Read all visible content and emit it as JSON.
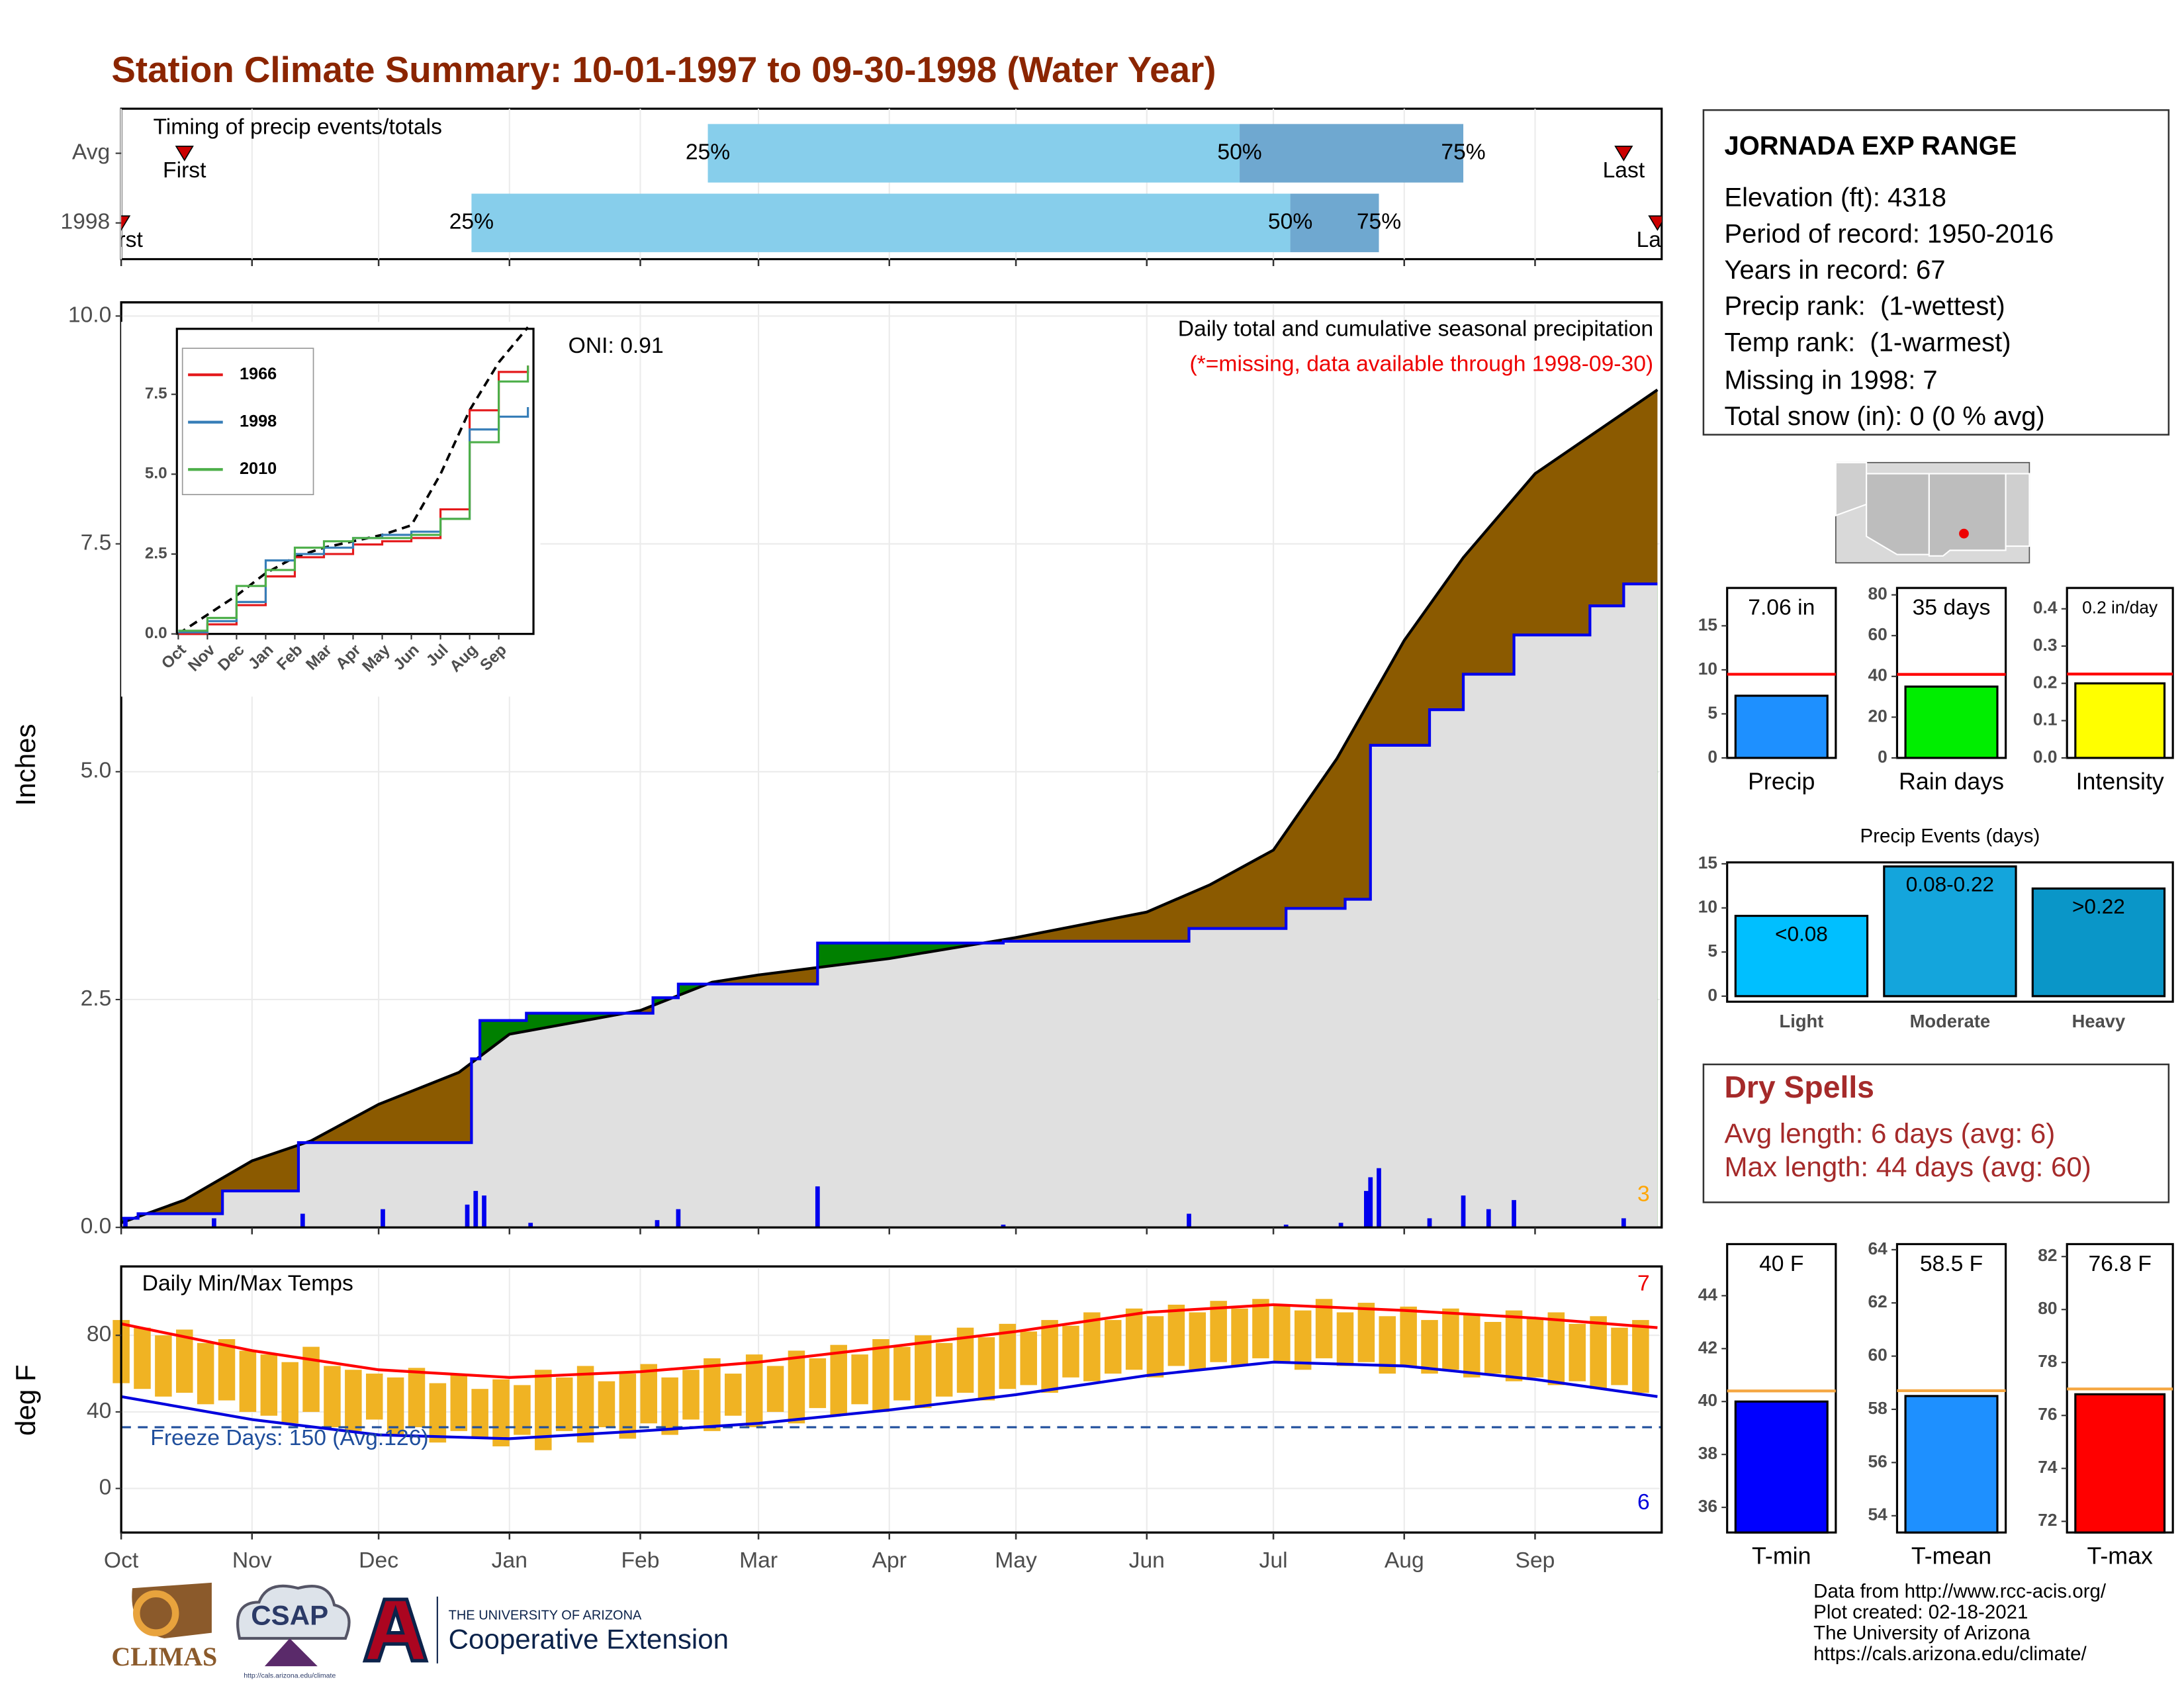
{
  "title": "Station Climate Summary: 10-01-1997 to 09-30-1998 (Water Year)",
  "station": {
    "name": "JORNADA EXP RANGE",
    "lines": [
      "Elevation (ft): 4318",
      "Period of record: 1950-2016",
      "Years in record: 67",
      "Precip rank:  (1-wettest)",
      "Temp rank:  (1-warmest)",
      "Missing in 1998: 7",
      "Total snow (in): 0 (0 % avg)"
    ]
  },
  "dry_spells": {
    "title": "Dry Spells",
    "lines": [
      "Avg length: 6 days (avg: 6)",
      "Max length: 44 days (avg: 60)"
    ]
  },
  "footer": [
    "Data from http://www.rcc-acis.org/",
    "Plot created: 02-18-2021",
    "The University of Arizona",
    "https://cals.arizona.edu/climate/"
  ],
  "logos": [
    "CLIMAS",
    "CSAP",
    "http://cals.arizona.edu/climate",
    "THE UNIVERSITY OF ARIZONA",
    "Cooperative Extension"
  ],
  "chart_data": [
    {
      "type": "timeline",
      "subtitle": "Timing of precip events/totals",
      "categories": [
        "Avg",
        "1998"
      ],
      "points": [
        {
          "name": "First",
          "values": [
            15,
            0
          ]
        },
        {
          "name": "25%",
          "values": [
            139,
            83
          ]
        },
        {
          "name": "50%",
          "values": [
            265,
            277
          ]
        },
        {
          "name": "75%",
          "values": [
            318,
            298
          ]
        },
        {
          "name": "Last",
          "values": [
            356,
            364
          ]
        }
      ],
      "colors": [
        "#87ceeb",
        "#6fa8d0",
        "#cc0000"
      ],
      "xlim": [
        0,
        365
      ],
      "xticks": [
        0,
        31,
        61,
        92,
        123,
        151,
        182,
        212,
        243,
        273,
        304,
        335
      ]
    },
    {
      "type": "area_step",
      "title": "Daily total and cumulative seasonal precipitation",
      "subtitle": "(*=missing, data available through 1998-09-30)",
      "annotation": "ONI: 0.91",
      "corner_label": "3",
      "ylabel": "Inches",
      "xlim": [
        0,
        365
      ],
      "xticks": [
        0,
        31,
        61,
        92,
        123,
        151,
        182,
        212,
        243,
        273,
        304,
        335
      ],
      "ylim": [
        0,
        10.15
      ],
      "yticks": [
        {
          "value": 0,
          "label": "0.0"
        },
        2.5,
        {
          "value": 5,
          "label": "5.0"
        },
        7.5,
        {
          "value": 10,
          "label": "10.0"
        }
      ],
      "series": [
        {
          "color": "#000000",
          "fill": "#8b5a00",
          "x": [
            0,
            15,
            31,
            45,
            61,
            80,
            92,
            123,
            140,
            151,
            182,
            212,
            243,
            258,
            273,
            288,
            304,
            318,
            335,
            364
          ],
          "values": [
            0.05,
            0.3,
            0.73,
            0.95,
            1.35,
            1.7,
            2.12,
            2.38,
            2.69,
            2.77,
            2.95,
            3.18,
            3.46,
            3.76,
            4.14,
            5.14,
            6.44,
            7.35,
            8.27,
            9.19
          ]
        },
        {
          "color": "#0000ee",
          "fill": "#008000",
          "x": [
            0,
            4,
            24,
            42,
            83,
            85,
            96,
            126,
            132,
            165,
            209,
            253,
            276,
            290,
            296,
            310,
            318,
            330,
            348,
            356,
            364
          ],
          "values": [
            0.1,
            0.15,
            0.4,
            0.93,
            1.85,
            2.27,
            2.35,
            2.52,
            2.67,
            3.12,
            3.14,
            3.28,
            3.5,
            3.6,
            5.29,
            5.68,
            6.07,
            6.5,
            6.82,
            7.06,
            7.06
          ]
        }
      ],
      "below_color": "#e0e0e0",
      "daily": {
        "color": "#0000ee",
        "x": [
          1,
          22,
          43,
          62,
          82,
          84,
          86,
          97,
          127,
          132,
          165,
          209,
          253,
          276,
          289,
          295,
          296,
          298,
          310,
          318,
          324,
          330,
          356
        ],
        "values": [
          0.1,
          0.1,
          0.15,
          0.2,
          0.25,
          0.4,
          0.35,
          0.05,
          0.08,
          0.2,
          0.45,
          0.03,
          0.15,
          0.03,
          0.05,
          0.4,
          0.55,
          0.65,
          0.1,
          0.35,
          0.2,
          0.3,
          0.1
        ]
      }
    },
    {
      "type": "line",
      "xlim": [
        0,
        12
      ],
      "xticks": [
        {
          "value": 0,
          "label": "Oct"
        },
        {
          "value": 1,
          "label": "Nov"
        },
        {
          "value": 2,
          "label": "Dec"
        },
        {
          "value": 3,
          "label": "Jan"
        },
        {
          "value": 4,
          "label": "Feb"
        },
        {
          "value": 5,
          "label": "Mar"
        },
        {
          "value": 6,
          "label": "Apr"
        },
        {
          "value": 7,
          "label": "May"
        },
        {
          "value": 8,
          "label": "Jun"
        },
        {
          "value": 9,
          "label": "Jul"
        },
        {
          "value": 10,
          "label": "Aug"
        },
        {
          "value": 11,
          "label": "Sep"
        }
      ],
      "ylim": [
        0,
        9.55
      ],
      "yticks": [
        {
          "value": 0,
          "label": "0.0"
        },
        2.5,
        {
          "value": 5,
          "label": "5.0"
        },
        7.5
      ],
      "x": [
        0,
        1,
        2,
        3,
        4,
        5,
        6,
        7,
        8,
        9,
        10,
        11,
        12
      ],
      "series": [
        {
          "color": "#000000",
          "dash": true,
          "values": [
            0,
            0.6,
            1.2,
            1.9,
            2.4,
            2.7,
            2.9,
            3.1,
            3.4,
            5.0,
            7.0,
            8.5,
            9.6
          ]
        },
        {
          "name": "1966",
          "color": "#e41a1c",
          "values": [
            0,
            0.3,
            0.9,
            1.8,
            2.4,
            2.5,
            2.8,
            2.9,
            3.0,
            3.9,
            7.0,
            8.2,
            8.4
          ]
        },
        {
          "name": "1998",
          "color": "#377eb8",
          "values": [
            0.05,
            0.4,
            1.0,
            2.3,
            2.5,
            2.7,
            3.0,
            3.1,
            3.2,
            3.6,
            6.4,
            6.8,
            7.1
          ]
        },
        {
          "name": "2010",
          "color": "#4daf4a",
          "values": [
            0.1,
            0.5,
            1.5,
            2.0,
            2.7,
            2.9,
            3.0,
            3.0,
            3.1,
            3.6,
            6.0,
            7.9,
            8.4
          ]
        }
      ]
    },
    {
      "type": "range",
      "title": "Daily Min/Max Temps",
      "ylabel": "deg F",
      "annotation": "Freeze Days: 150 (Avg:126)",
      "freeze": 32,
      "max_label": "7",
      "min_label": "6",
      "xlim": [
        0,
        365
      ],
      "xticks": [
        {
          "value": 0,
          "label": "Oct"
        },
        {
          "value": 31,
          "label": "Nov"
        },
        {
          "value": 61,
          "label": "Dec"
        },
        {
          "value": 92,
          "label": "Jan"
        },
        {
          "value": 123,
          "label": "Feb"
        },
        {
          "value": 151,
          "label": "Mar"
        },
        {
          "value": 182,
          "label": "Apr"
        },
        {
          "value": 212,
          "label": "May"
        },
        {
          "value": 243,
          "label": "Jun"
        },
        {
          "value": 273,
          "label": "Jul"
        },
        {
          "value": 304,
          "label": "Aug"
        },
        {
          "value": 335,
          "label": "Sep"
        }
      ],
      "ylim": [
        -23,
        116
      ],
      "yticks": [
        0,
        40,
        80
      ],
      "bar_color": "#f0b323",
      "daily": {
        "x": [
          0,
          5,
          10,
          15,
          20,
          25,
          30,
          35,
          40,
          45,
          50,
          55,
          60,
          65,
          70,
          75,
          80,
          85,
          90,
          95,
          100,
          105,
          110,
          115,
          120,
          125,
          130,
          135,
          140,
          145,
          150,
          155,
          160,
          165,
          170,
          175,
          180,
          185,
          190,
          195,
          200,
          205,
          210,
          215,
          220,
          225,
          230,
          235,
          240,
          245,
          250,
          255,
          260,
          265,
          270,
          275,
          280,
          285,
          290,
          295,
          300,
          305,
          310,
          315,
          320,
          325,
          330,
          335,
          340,
          345,
          350,
          355,
          360
        ],
        "max": [
          88,
          84,
          80,
          83,
          76,
          78,
          72,
          70,
          66,
          74,
          64,
          62,
          60,
          58,
          63,
          55,
          60,
          52,
          57,
          54,
          62,
          58,
          64,
          56,
          60,
          65,
          58,
          62,
          68,
          60,
          70,
          64,
          72,
          68,
          75,
          70,
          78,
          74,
          80,
          76,
          84,
          79,
          86,
          82,
          88,
          85,
          92,
          88,
          94,
          90,
          96,
          92,
          98,
          94,
          99,
          96,
          93,
          99,
          92,
          97,
          90,
          95,
          88,
          94,
          91,
          87,
          93,
          89,
          92,
          86,
          90,
          84,
          88
        ],
        "min": [
          55,
          52,
          48,
          50,
          44,
          46,
          40,
          38,
          34,
          40,
          32,
          30,
          36,
          28,
          32,
          24,
          30,
          26,
          22,
          28,
          20,
          30,
          24,
          32,
          26,
          34,
          28,
          36,
          30,
          38,
          32,
          40,
          34,
          42,
          38,
          44,
          40,
          46,
          42,
          48,
          50,
          46,
          52,
          54,
          50,
          58,
          56,
          60,
          62,
          58,
          64,
          62,
          66,
          64,
          68,
          66,
          62,
          68,
          64,
          66,
          60,
          64,
          60,
          62,
          58,
          60,
          56,
          58,
          54,
          56,
          52,
          54,
          50
        ]
      },
      "series": [
        {
          "color": "#ff0000",
          "x": [
            0,
            31,
            61,
            92,
            123,
            151,
            182,
            212,
            243,
            273,
            304,
            335,
            364
          ],
          "values": [
            86,
            72,
            62,
            58,
            61,
            66,
            74,
            82,
            92,
            96,
            93,
            89,
            84
          ]
        },
        {
          "color": "#0000dd",
          "x": [
            0,
            31,
            61,
            92,
            123,
            151,
            182,
            212,
            243,
            273,
            304,
            335,
            364
          ],
          "values": [
            48,
            36,
            28,
            26,
            30,
            34,
            41,
            49,
            59,
            66,
            64,
            57,
            48
          ]
        }
      ]
    },
    {
      "type": "bar",
      "categories": [
        "Precip"
      ],
      "values": [
        7.06
      ],
      "value_labels": [
        "7.06 in"
      ],
      "avg": 9.5,
      "avg_color": "#ff0000",
      "color": "#1e90ff",
      "ylim": [
        0,
        19.3
      ],
      "yticks": [
        0,
        5,
        10,
        15
      ]
    },
    {
      "type": "bar",
      "categories": [
        "Rain days"
      ],
      "values": [
        35
      ],
      "value_labels": [
        "35 days"
      ],
      "avg": 41,
      "avg_color": "#ff0000",
      "color": "#00ee00",
      "ylim": [
        0,
        83.4
      ],
      "yticks": [
        0,
        20,
        40,
        60,
        80
      ]
    },
    {
      "type": "bar",
      "categories": [
        "Intensity"
      ],
      "values": [
        0.2
      ],
      "value_labels": [
        "0.2 in/day"
      ],
      "avg": 0.225,
      "avg_color": "#ff0000",
      "color": "#ffff00",
      "ylim": [
        0,
        0.456
      ],
      "yticks": [
        {
          "value": 0,
          "label": "0.0"
        },
        0.1,
        0.2,
        0.3,
        0.4
      ]
    },
    {
      "type": "bar",
      "title": "Precip Events (days)",
      "categories": [
        "Light",
        "Moderate",
        "Heavy"
      ],
      "values": [
        9.1,
        14.7,
        12.2
      ],
      "bin_labels": [
        "<0.08",
        "0.08-0.22",
        ">0.22"
      ],
      "colors": [
        "#00bfff",
        "#14a5dc",
        "#0a96c8"
      ],
      "ylim": [
        -0.63,
        15.16
      ],
      "yticks": [
        0,
        5,
        10,
        15
      ]
    },
    {
      "type": "bar",
      "categories": [
        "T-min"
      ],
      "values": [
        40
      ],
      "value_labels": [
        "40 F"
      ],
      "avg": 40.4,
      "avg_color": "#f5a742",
      "color": "#0000ff",
      "ylim": [
        35.05,
        45.95
      ],
      "yticks": [
        36,
        38,
        40,
        42,
        44
      ]
    },
    {
      "type": "bar",
      "categories": [
        "T-mean"
      ],
      "values": [
        58.5
      ],
      "value_labels": [
        "58.5 F"
      ],
      "avg": 58.7,
      "avg_color": "#f5a742",
      "color": "#1e90ff",
      "ylim": [
        53.37,
        64.21
      ],
      "yticks": [
        54,
        56,
        58,
        60,
        62,
        64
      ]
    },
    {
      "type": "bar",
      "categories": [
        "T-max"
      ],
      "values": [
        76.8
      ],
      "value_labels": [
        "76.8 F"
      ],
      "avg": 77,
      "avg_color": "#f5a742",
      "color": "#ff0000",
      "ylim": [
        71.58,
        82.47
      ],
      "yticks": [
        72,
        74,
        76,
        78,
        80,
        82
      ]
    }
  ]
}
